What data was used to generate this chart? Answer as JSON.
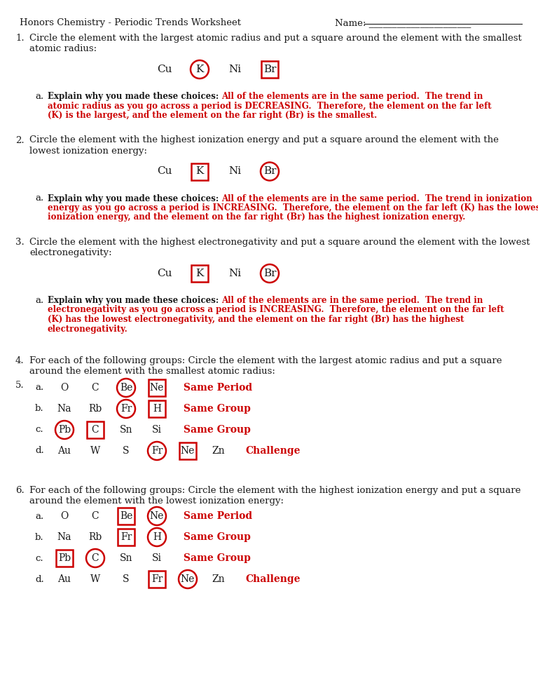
{
  "bg_color": "#ffffff",
  "black": "#1a1a1a",
  "red": "#cc0000",
  "header_left": "Honors Chemistry - Periodic Trends Worksheet",
  "header_right": "Name: ______________________",
  "sections": [
    {
      "num": "1.",
      "q1": "Circle the element with the largest atomic radius and put a square around the element with the smallest",
      "q2": "atomic radius:",
      "elems": [
        "Cu",
        "K",
        "Ni",
        "Br"
      ],
      "circle": "K",
      "square": "Br",
      "ans_prefix": "Explain why you made these choices: ",
      "ans_red_lines": [
        "All of the elements are in the same period.  The trend in",
        "atomic radius as you go across a period is DECREASING.  Therefore, the element on the far left",
        "(K) is the largest, and the element on the far right (Br) is the smallest."
      ]
    },
    {
      "num": "2.",
      "q1": "Circle the element with the highest ionization energy and put a square around the element with the",
      "q2": "lowest ionization energy:",
      "elems": [
        "Cu",
        "K",
        "Ni",
        "Br"
      ],
      "circle": "Br",
      "square": "K",
      "ans_prefix": "Explain why you made these choices: ",
      "ans_red_lines": [
        "All of the elements are in the same period.  The trend in ionization",
        "energy as you go across a period is INCREASING.  Therefore, the element on the far left (K) has the lowest",
        "ionization energy, and the element on the far right (Br) has the highest ionization energy."
      ]
    },
    {
      "num": "3.",
      "q1": "Circle the element with the highest electronegativity and put a square around the element with the lowest",
      "q2": "electronegativity:",
      "elems": [
        "Cu",
        "K",
        "Ni",
        "Br"
      ],
      "circle": "Br",
      "square": "K",
      "ans_prefix": "Explain why you made these choices: ",
      "ans_red_lines": [
        "All of the elements are in the same period.  The trend in",
        "electronegativity as you go across a period is INCREASING.  Therefore, the element on the far left",
        "(K) has the lowest electronegativity, and the element on the far right (Br) has the highest",
        "electronegativity."
      ]
    }
  ],
  "q4_num": "4.",
  "q4_l1": "For each of the following groups: Circle the element with the largest atomic radius and put a square",
  "q4_l2": "around the element with the smallest atomic radius:",
  "q5_num": "5.",
  "q45_rows": [
    {
      "label": "a.",
      "elems": [
        "O",
        "C",
        "Be",
        "Ne"
      ],
      "circle": "Be",
      "square": "Ne",
      "note": "Same Period"
    },
    {
      "label": "b.",
      "elems": [
        "Na",
        "Rb",
        "Fr",
        "H"
      ],
      "circle": "Fr",
      "square": "H",
      "note": "Same Group"
    },
    {
      "label": "c.",
      "elems": [
        "Pb",
        "C",
        "Sn",
        "Si"
      ],
      "circle": "Pb",
      "square": "C",
      "note": "Same Group"
    },
    {
      "label": "d.",
      "elems": [
        "Au",
        "W",
        "S",
        "Fr",
        "Ne",
        "Zn"
      ],
      "circle": "Fr",
      "square": "Ne",
      "note": "Challenge"
    }
  ],
  "q6_num": "6.",
  "q6_l1": "For each of the following groups: Circle the element with the highest ionization energy and put a square",
  "q6_l2": "around the element with the lowest ionization energy:",
  "q6_rows": [
    {
      "label": "a.",
      "elems": [
        "O",
        "C",
        "Be",
        "Ne"
      ],
      "circle": "Ne",
      "square": "Be",
      "note": "Same Period"
    },
    {
      "label": "b.",
      "elems": [
        "Na",
        "Rb",
        "Fr",
        "H"
      ],
      "circle": "H",
      "square": "Fr",
      "note": "Same Group"
    },
    {
      "label": "c.",
      "elems": [
        "Pb",
        "C",
        "Sn",
        "Si"
      ],
      "circle": "C",
      "square": "Pb",
      "note": "Same Group"
    },
    {
      "label": "d.",
      "elems": [
        "Au",
        "W",
        "S",
        "Fr",
        "Ne",
        "Zn"
      ],
      "circle": "Ne",
      "square": "Fr",
      "note": "Challenge"
    }
  ]
}
